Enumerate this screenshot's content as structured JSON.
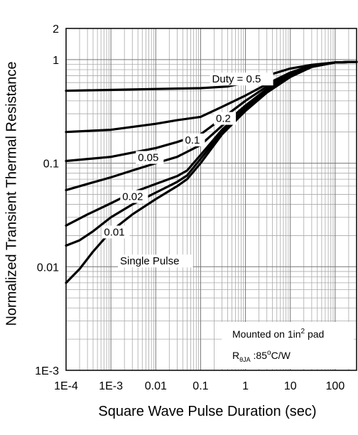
{
  "chart_data": {
    "type": "line",
    "xscale": "log",
    "yscale": "log",
    "xlim": [
      0.0001,
      300
    ],
    "ylim": [
      0.001,
      2
    ],
    "grid": true,
    "xlabel": "Square Wave Pulse Duration (sec)",
    "ylabel": "Normalized Transient Thermal Resistance",
    "xticks": [
      {
        "value": 0.0001,
        "label": "1E-4"
      },
      {
        "value": 0.001,
        "label": "1E-3"
      },
      {
        "value": 0.01,
        "label": "0.01"
      },
      {
        "value": 0.1,
        "label": "0.1"
      },
      {
        "value": 1,
        "label": "1"
      },
      {
        "value": 10,
        "label": "10"
      },
      {
        "value": 100,
        "label": "100"
      }
    ],
    "yticks": [
      {
        "value": 0.001,
        "label": "1E-3"
      },
      {
        "value": 0.01,
        "label": "0.01"
      },
      {
        "value": 0.1,
        "label": "0.1"
      },
      {
        "value": 1,
        "label": "1"
      },
      {
        "value": 2,
        "label": "2"
      }
    ],
    "series": [
      {
        "name": "Duty = 0.5",
        "x": [
          0.0001,
          0.001,
          0.01,
          0.1,
          0.4,
          1,
          3,
          10,
          30,
          100,
          300
        ],
        "y": [
          0.5,
          0.51,
          0.52,
          0.53,
          0.55,
          0.6,
          0.7,
          0.82,
          0.89,
          0.94,
          0.95
        ]
      },
      {
        "name": "0.2",
        "x": [
          0.0001,
          0.001,
          0.01,
          0.03,
          0.1,
          0.3,
          1,
          3,
          10,
          30,
          100,
          300
        ],
        "y": [
          0.2,
          0.21,
          0.24,
          0.26,
          0.28,
          0.35,
          0.45,
          0.58,
          0.75,
          0.88,
          0.94,
          0.95
        ]
      },
      {
        "name": "0.1",
        "x": [
          0.0001,
          0.001,
          0.01,
          0.03,
          0.1,
          0.3,
          1,
          3,
          10,
          30,
          100,
          300
        ],
        "y": [
          0.105,
          0.115,
          0.14,
          0.16,
          0.19,
          0.27,
          0.4,
          0.55,
          0.72,
          0.86,
          0.94,
          0.95
        ]
      },
      {
        "name": "0.05",
        "x": [
          0.0001,
          0.0003,
          0.001,
          0.003,
          0.01,
          0.03,
          0.1,
          0.3,
          1,
          3,
          10,
          30,
          100,
          300
        ],
        "y": [
          0.055,
          0.063,
          0.073,
          0.085,
          0.1,
          0.115,
          0.15,
          0.23,
          0.36,
          0.52,
          0.7,
          0.85,
          0.94,
          0.95
        ]
      },
      {
        "name": "0.02",
        "x": [
          0.0001,
          0.0003,
          0.001,
          0.003,
          0.01,
          0.03,
          0.05,
          0.1,
          0.3,
          1,
          3,
          10,
          30,
          100,
          300
        ],
        "y": [
          0.025,
          0.032,
          0.041,
          0.052,
          0.063,
          0.075,
          0.085,
          0.12,
          0.21,
          0.34,
          0.5,
          0.69,
          0.85,
          0.94,
          0.95
        ]
      },
      {
        "name": "0.01",
        "x": [
          0.0001,
          0.0002,
          0.0004,
          0.001,
          0.003,
          0.01,
          0.03,
          0.05,
          0.1,
          0.3,
          1,
          3,
          10,
          30,
          100,
          300
        ],
        "y": [
          0.016,
          0.018,
          0.022,
          0.03,
          0.04,
          0.052,
          0.066,
          0.076,
          0.11,
          0.2,
          0.33,
          0.49,
          0.69,
          0.85,
          0.94,
          0.95
        ]
      },
      {
        "name": "Single Pulse",
        "x": [
          0.0001,
          0.0002,
          0.0004,
          0.001,
          0.003,
          0.01,
          0.03,
          0.05,
          0.1,
          0.3,
          1,
          3,
          10,
          30,
          100,
          300
        ],
        "y": [
          0.007,
          0.0095,
          0.014,
          0.022,
          0.032,
          0.045,
          0.06,
          0.07,
          0.1,
          0.19,
          0.32,
          0.48,
          0.68,
          0.85,
          0.94,
          0.95
        ]
      }
    ],
    "annotations": {
      "duty_labels": [
        {
          "text": "Duty = 0.5",
          "x": 0.18,
          "y": 0.6
        },
        {
          "text": "0.2",
          "x": 0.22,
          "y": 0.25
        },
        {
          "text": "0.1",
          "x": 0.045,
          "y": 0.155
        },
        {
          "text": "0.05",
          "x": 0.004,
          "y": 0.105
        },
        {
          "text": "0.02",
          "x": 0.0018,
          "y": 0.044
        },
        {
          "text": "0.01",
          "x": 0.0007,
          "y": 0.02
        },
        {
          "text": "Single Pulse",
          "x": 0.0016,
          "y": 0.0105
        }
      ],
      "info_box": {
        "line1_prefix": "Mounted on 1in",
        "line1_sup": "2",
        "line1_suffix": " pad",
        "line2_r": "R",
        "line2_sub": "θJA",
        "line2_value": " :85",
        "line2_sup": "o",
        "line2_unit": "C/W"
      }
    }
  }
}
